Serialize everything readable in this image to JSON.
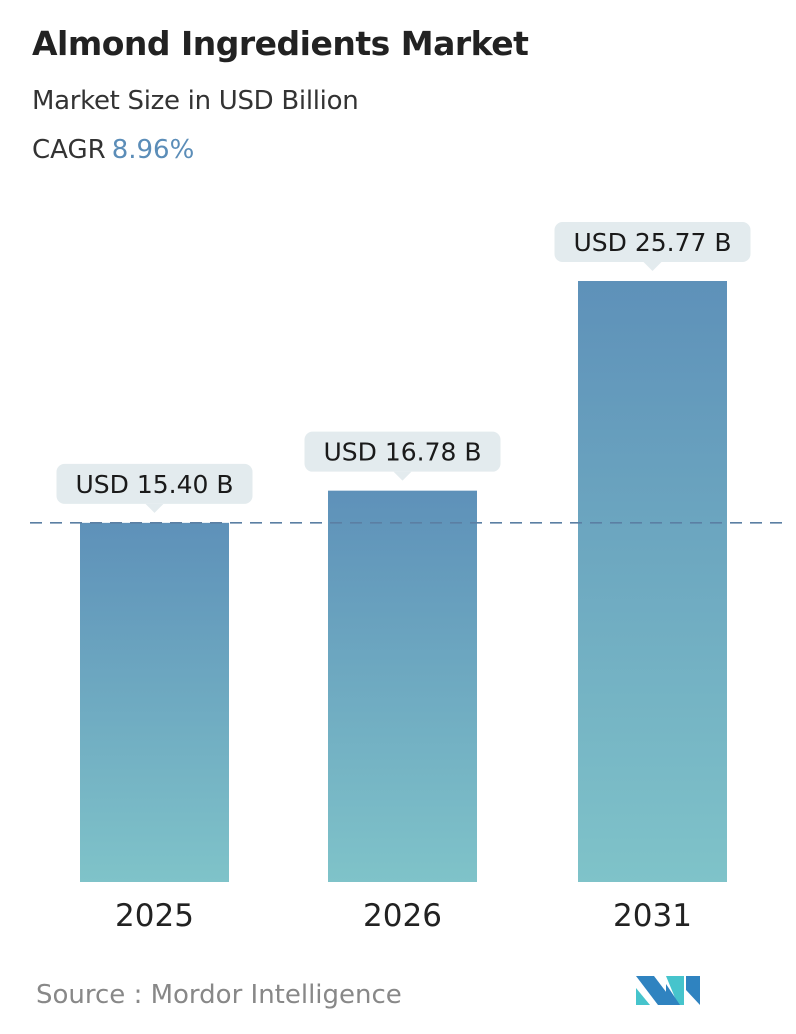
{
  "title": "Almond Ingredients Market",
  "subtitle": "Market Size in USD Billion",
  "cagr_label": "CAGR",
  "cagr_value": "8.96%",
  "source": "Source :  Mordor Intelligence",
  "colors": {
    "bar_top": "#5e91b9",
    "bar_bottom": "#7fc3c9",
    "label_bg": "#e3ebee",
    "cagr": "#5b8db8",
    "dashed_line": "#5b7fa3"
  },
  "chart_data": {
    "type": "bar",
    "categories": [
      "2025",
      "2026",
      "2031"
    ],
    "values": [
      15.4,
      16.78,
      25.77
    ],
    "data_labels": [
      "USD 15.40 B",
      "USD 16.78 B",
      "USD 25.77 B"
    ],
    "reference_line": {
      "value": 15.4,
      "style": "dashed"
    },
    "grid": false
  }
}
